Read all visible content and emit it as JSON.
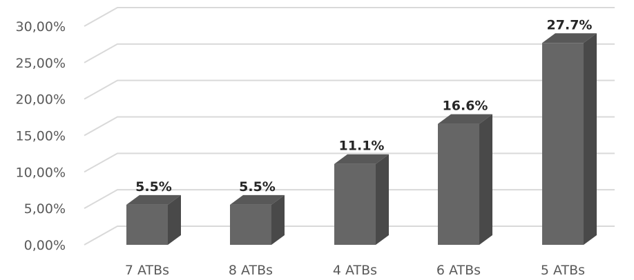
{
  "chart_data": {
    "type": "bar",
    "style": "3d-column",
    "categories": [
      "7 ATBs",
      "8 ATBs",
      "4 ATBs",
      "6 ATBs",
      "5 ATBs"
    ],
    "values": [
      5.5,
      5.5,
      11.1,
      16.6,
      27.7
    ],
    "data_labels": [
      "5.5%",
      "5.5%",
      "11.1%",
      "16.6%",
      "27.7%"
    ],
    "y_ticks": [
      0,
      5,
      10,
      15,
      20,
      25,
      30
    ],
    "y_tick_labels": [
      "0,00%",
      "5,00%",
      "10,00%",
      "15,00%",
      "20,00%",
      "25,00%",
      "30,00%"
    ],
    "ylim": [
      0,
      30
    ],
    "title": "",
    "xlabel": "",
    "ylabel": "",
    "grid": true,
    "legend": "none",
    "colors": {
      "bar_front": "#666666",
      "bar_side": "#494949",
      "bar_top": "#585858",
      "grid": "#d9d9d9"
    }
  }
}
